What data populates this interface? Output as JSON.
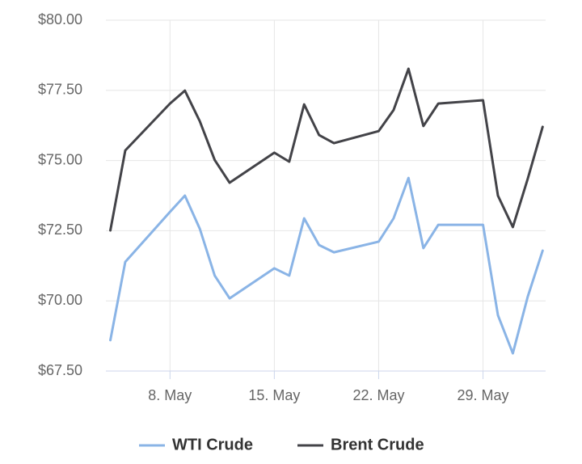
{
  "chart_data": {
    "type": "line",
    "x": [
      4,
      5,
      8,
      9,
      10,
      11,
      12,
      15,
      16,
      17,
      18,
      19,
      22,
      23,
      24,
      25,
      26,
      29,
      30,
      31,
      32,
      33
    ],
    "xlim": [
      3.7,
      33.2
    ],
    "xticks": [
      {
        "value": 8,
        "label": "8. May"
      },
      {
        "value": 15,
        "label": "15. May"
      },
      {
        "value": 22,
        "label": "22. May"
      },
      {
        "value": 29,
        "label": "29. May"
      }
    ],
    "ylim": [
      67.5,
      80
    ],
    "yticks": [
      {
        "value": 67.5,
        "label": "$67.50"
      },
      {
        "value": 70,
        "label": "$70.00"
      },
      {
        "value": 72.5,
        "label": "$72.50"
      },
      {
        "value": 75,
        "label": "$75.00"
      },
      {
        "value": 77.5,
        "label": "$77.50"
      },
      {
        "value": 80,
        "label": "$80.00"
      }
    ],
    "grid": true,
    "legend": "bottom",
    "series": [
      {
        "name": "WTI Crude",
        "color": "#8ab4e6",
        "values": [
          68.6,
          71.39,
          73.17,
          73.75,
          72.57,
          70.9,
          70.09,
          71.16,
          70.9,
          72.94,
          71.99,
          71.73,
          72.11,
          72.94,
          74.38,
          71.88,
          72.71,
          72.71,
          69.49,
          68.13,
          70.15,
          71.79
        ]
      },
      {
        "name": "Brent Crude",
        "color": "#434348",
        "values": [
          72.51,
          75.36,
          77.03,
          77.49,
          76.4,
          75.02,
          74.21,
          75.28,
          74.96,
          77.0,
          75.91,
          75.62,
          76.05,
          76.8,
          78.27,
          76.23,
          77.03,
          77.15,
          73.75,
          72.63,
          74.35,
          76.2
        ]
      }
    ]
  }
}
